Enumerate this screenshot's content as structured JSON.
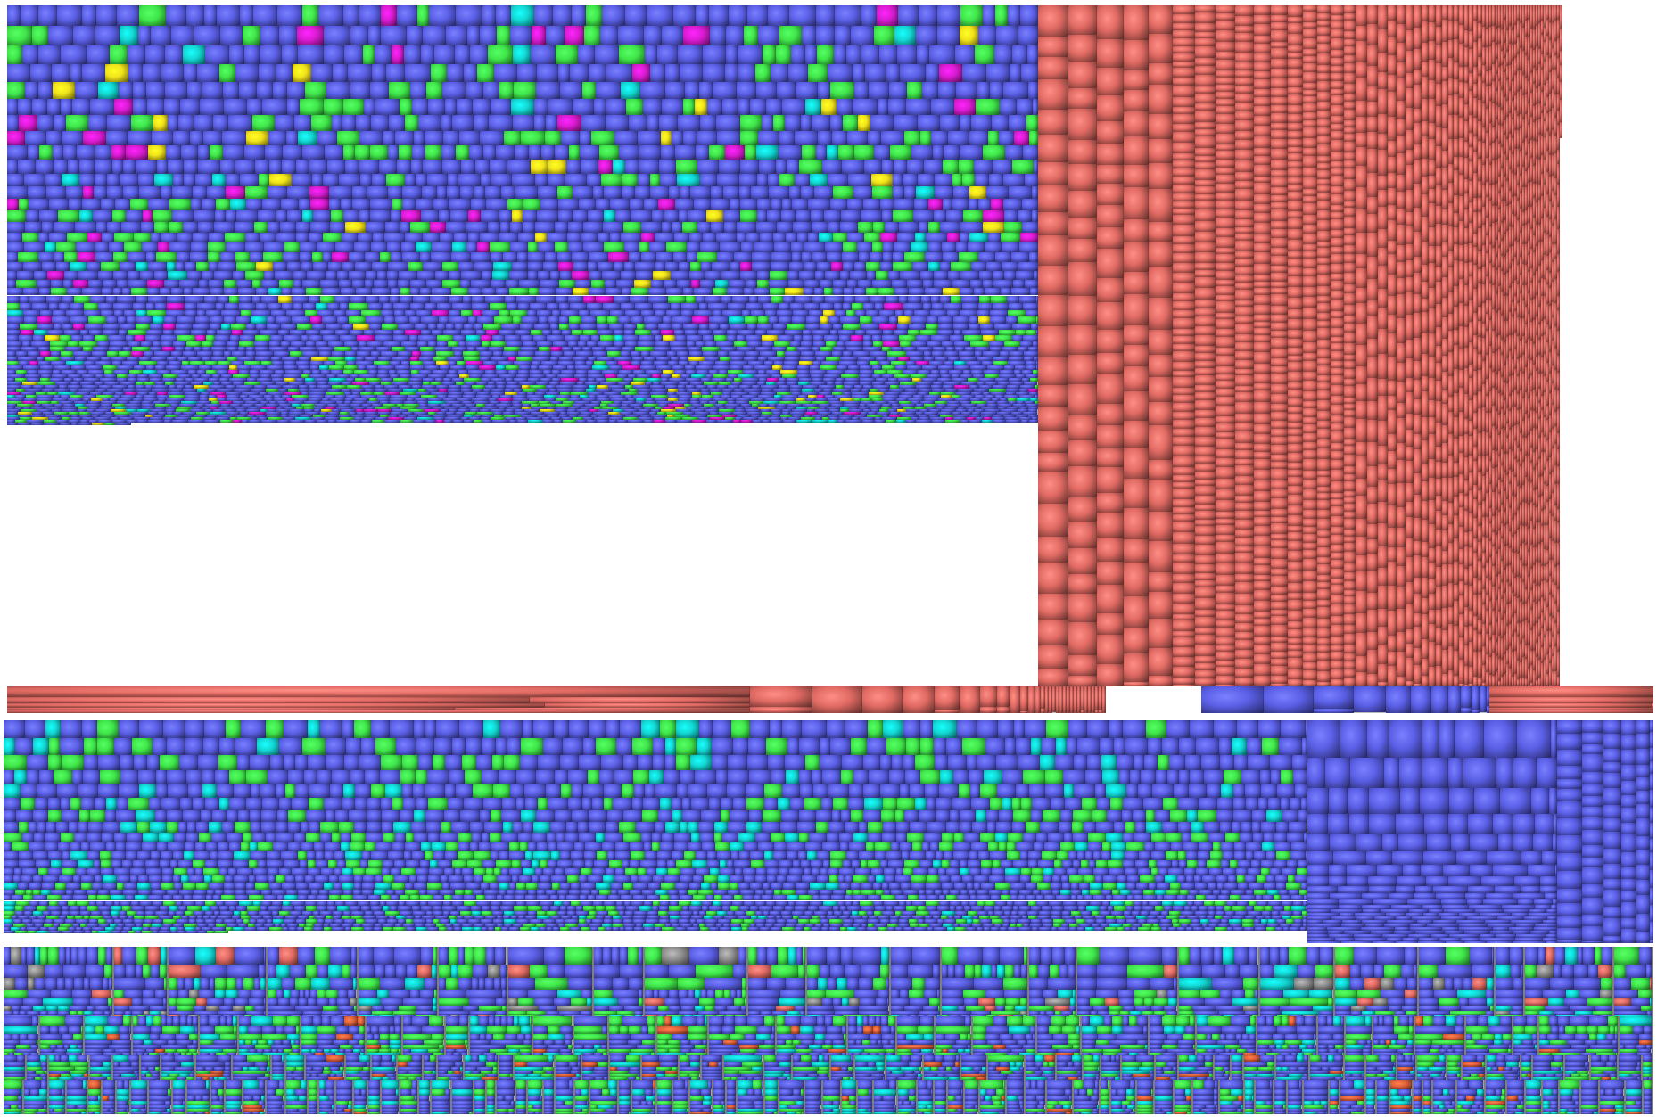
{
  "app": {
    "title": "",
    "view": "disk-usage-treemap"
  },
  "palette": {
    "blue": "#5a5fe6",
    "blue_dark": "#2b2e9a",
    "red": "#e06a63",
    "red_dark": "#a8443f",
    "green": "#3fe64a",
    "magenta": "#d81bd0",
    "cyan": "#12d6d2",
    "yellow": "#f0e21a",
    "gray": "#8c8c8c",
    "orange": "#e0603a",
    "frame": "#ffffff"
  },
  "legend_note": "",
  "icons": [
    "treemap-cell",
    "directory-frame"
  ]
}
